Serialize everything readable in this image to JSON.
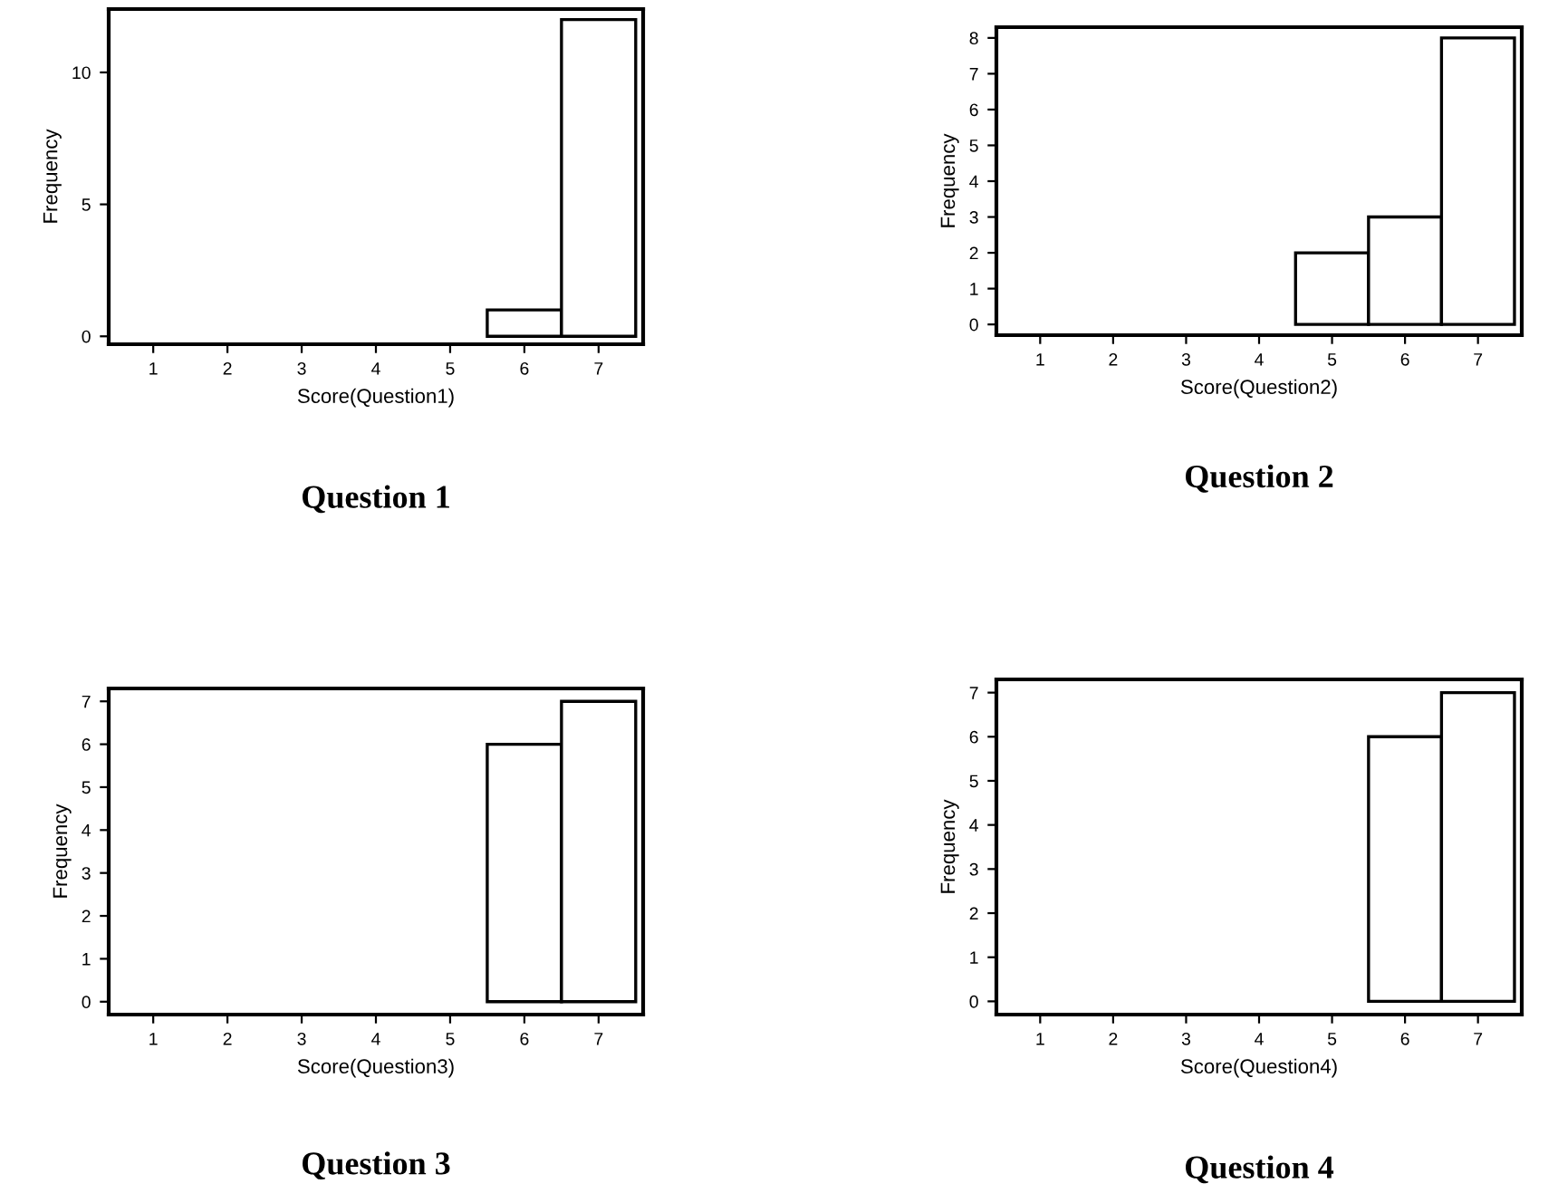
{
  "chart_data": [
    {
      "type": "histogram",
      "title": "Question 1",
      "xlabel": "Score(Question1)",
      "ylabel": "Frequency",
      "bins": [
        0.5,
        1.5,
        2.5,
        3.5,
        4.5,
        5.5,
        6.5,
        7.5
      ],
      "values": [
        0,
        0,
        0,
        0,
        0,
        1,
        12
      ],
      "color": "#ffffff",
      "xlim": [
        0.4,
        7.6
      ],
      "ylim": [
        -0.3,
        12.4
      ],
      "xticks": [
        1,
        2,
        3,
        4,
        5,
        6,
        7
      ],
      "yticks": [
        0,
        5,
        10
      ],
      "grid": false,
      "legend": false
    },
    {
      "type": "histogram",
      "title": "Question 2",
      "xlabel": "Score(Question2)",
      "ylabel": "Frequency",
      "bins": [
        0.5,
        1.5,
        2.5,
        3.5,
        4.5,
        5.5,
        6.5,
        7.5
      ],
      "values": [
        0,
        0,
        0,
        0,
        2,
        3,
        8
      ],
      "color": "#ffffff",
      "xlim": [
        0.4,
        7.6
      ],
      "ylim": [
        -0.3,
        8.3
      ],
      "xticks": [
        1,
        2,
        3,
        4,
        5,
        6,
        7
      ],
      "yticks": [
        0,
        1,
        2,
        3,
        4,
        5,
        6,
        7,
        8
      ],
      "grid": false,
      "legend": false
    },
    {
      "type": "histogram",
      "title": "Question 3",
      "xlabel": "Score(Question3)",
      "ylabel": "Frequency",
      "bins": [
        0.5,
        1.5,
        2.5,
        3.5,
        4.5,
        5.5,
        6.5,
        7.5
      ],
      "values": [
        0,
        0,
        0,
        0,
        0,
        6,
        7
      ],
      "color": "#ffffff",
      "xlim": [
        0.4,
        7.6
      ],
      "ylim": [
        -0.3,
        7.3
      ],
      "xticks": [
        1,
        2,
        3,
        4,
        5,
        6,
        7
      ],
      "yticks": [
        0,
        1,
        2,
        3,
        4,
        5,
        6,
        7
      ],
      "grid": false,
      "legend": false
    },
    {
      "type": "histogram",
      "title": "Question 4",
      "xlabel": "Score(Question4)",
      "ylabel": "Frequency",
      "bins": [
        0.5,
        1.5,
        2.5,
        3.5,
        4.5,
        5.5,
        6.5,
        7.5
      ],
      "values": [
        0,
        0,
        0,
        0,
        0,
        6,
        7
      ],
      "color": "#ffffff",
      "xlim": [
        0.4,
        7.6
      ],
      "ylim": [
        -0.3,
        7.3
      ],
      "xticks": [
        1,
        2,
        3,
        4,
        5,
        6,
        7
      ],
      "yticks": [
        0,
        1,
        2,
        3,
        4,
        5,
        6,
        7
      ],
      "grid": false,
      "legend": false
    }
  ]
}
